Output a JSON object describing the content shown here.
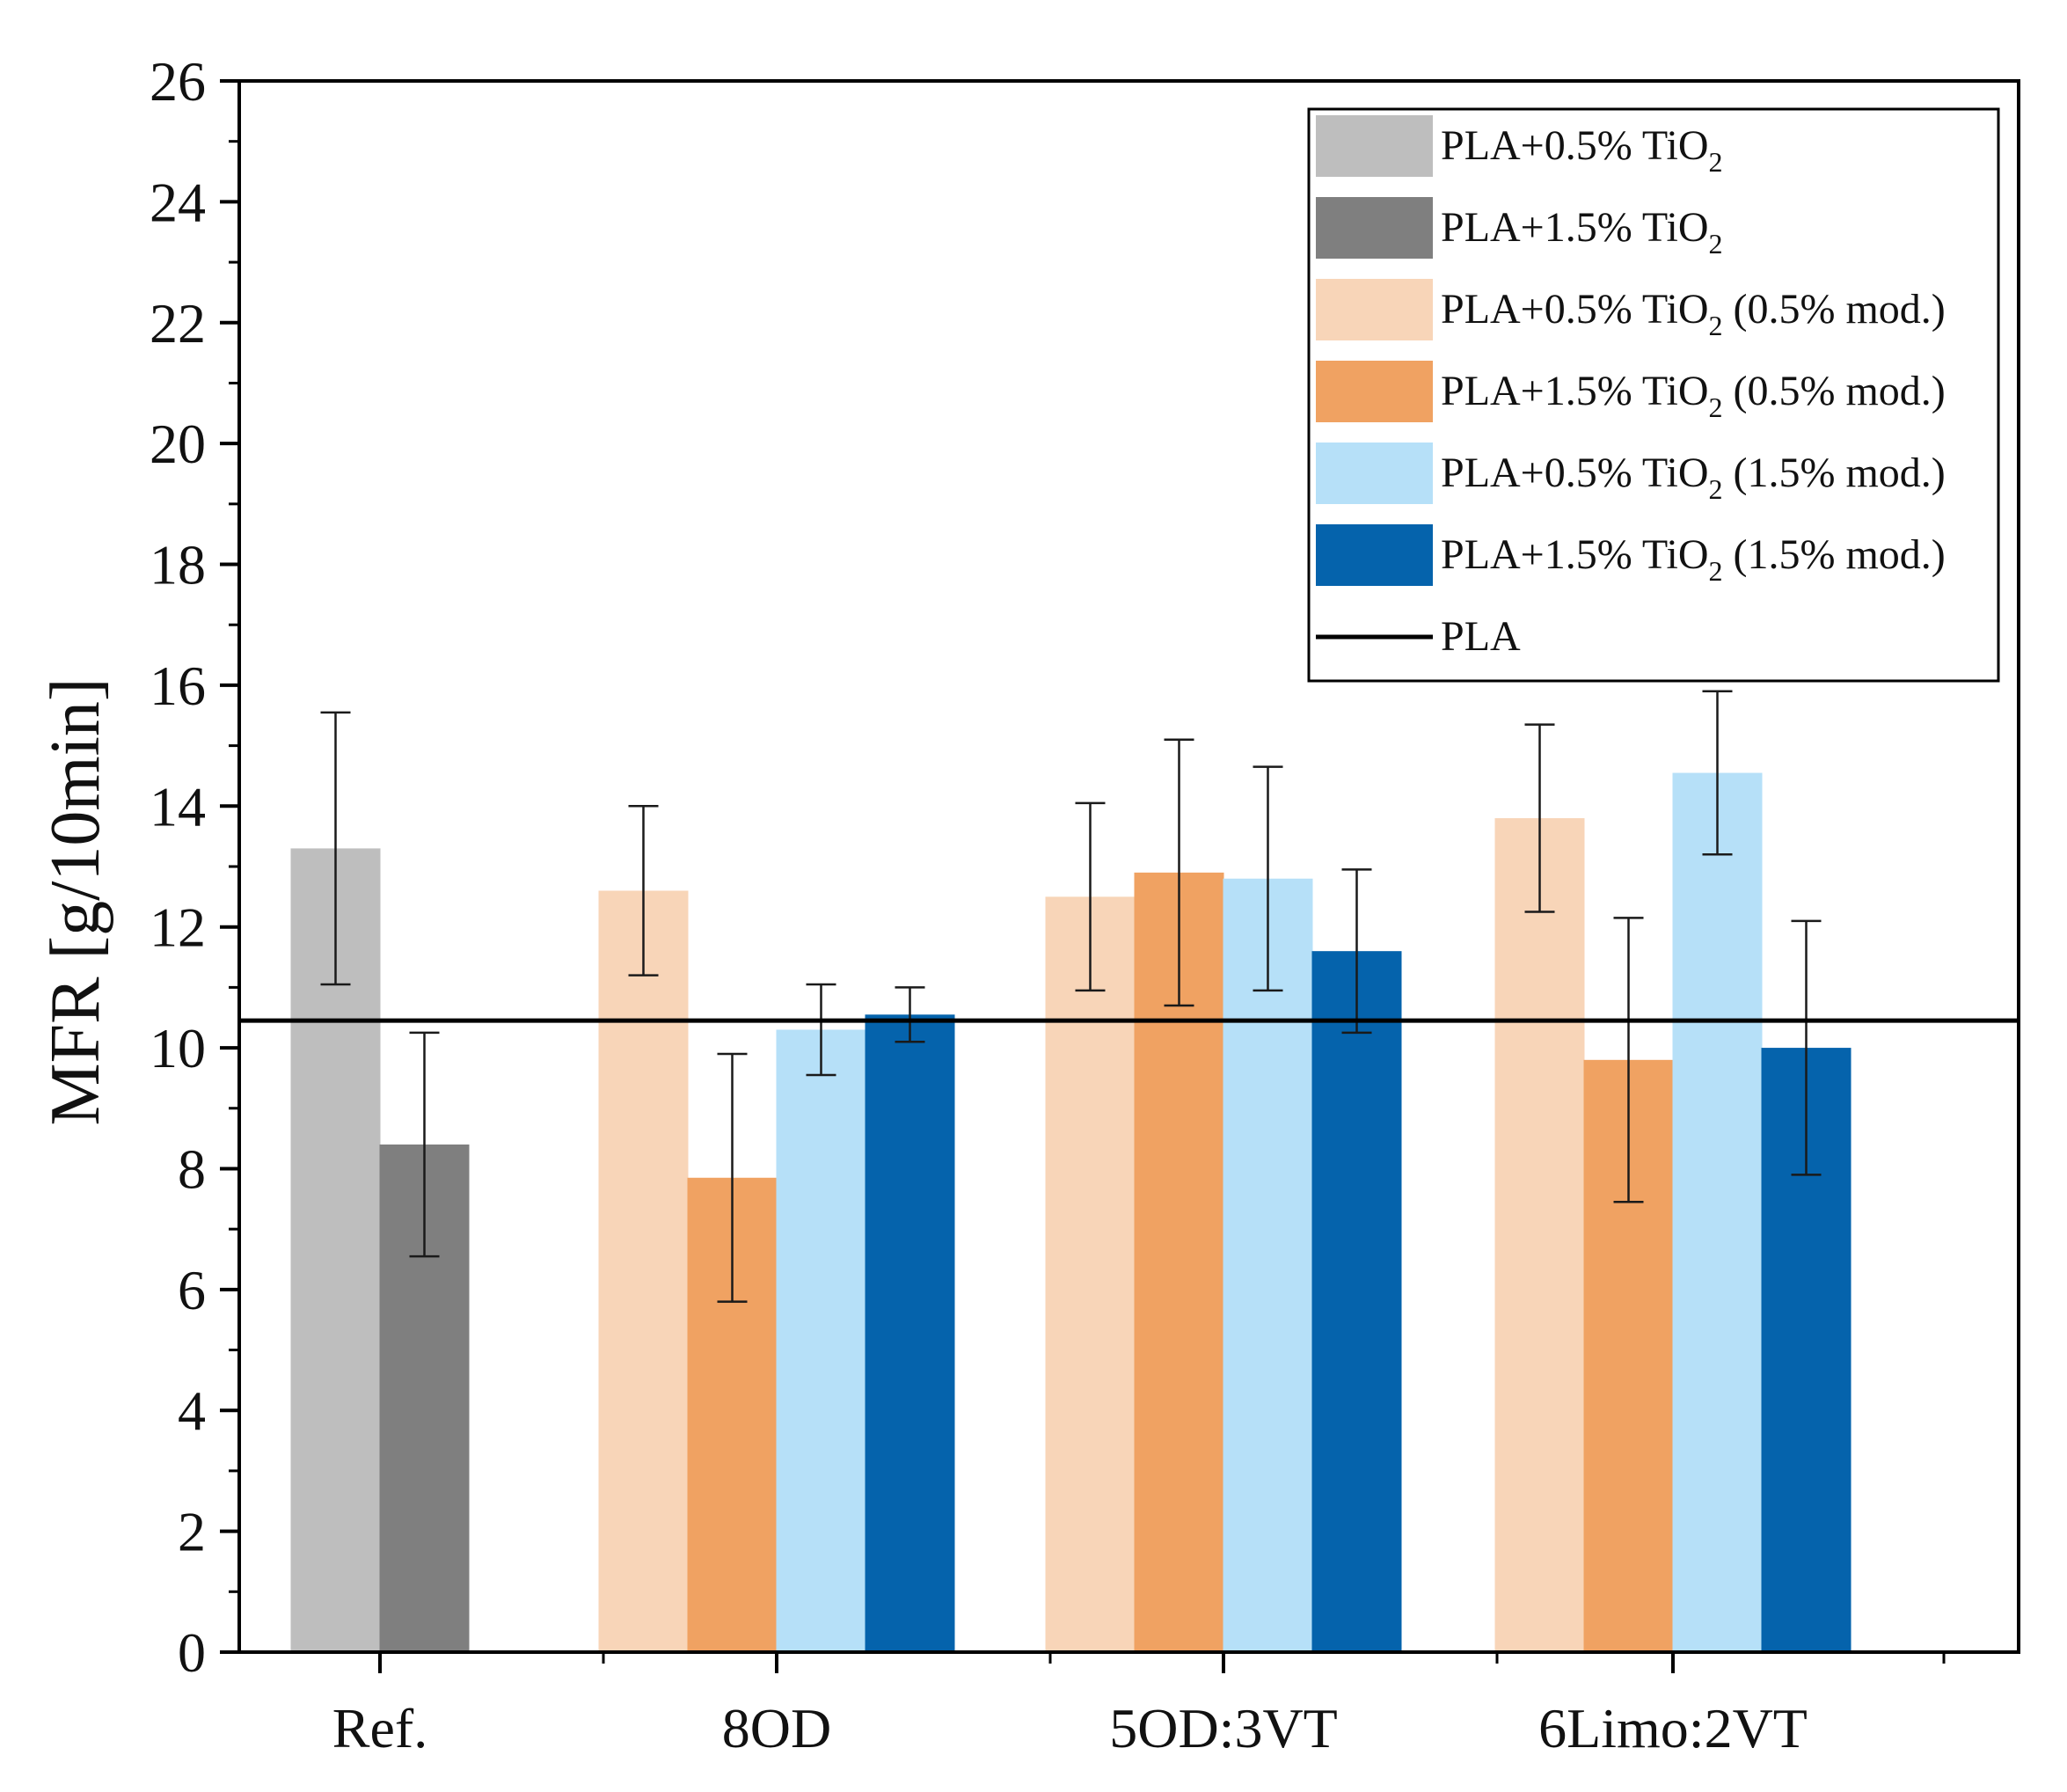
{
  "chart_data": {
    "type": "bar",
    "title": "",
    "xlabel": "",
    "ylabel": "MFR [g/10min]",
    "ylim": [
      0,
      26
    ],
    "yticks": [
      "0",
      "2",
      "4",
      "6",
      "8",
      "10",
      "12",
      "14",
      "16",
      "18",
      "20",
      "22",
      "24",
      "26"
    ],
    "categories": [
      "Ref.",
      "8OD",
      "5OD:3VT",
      "6Limo:2VT"
    ],
    "series": [
      {
        "name": "PLA+0.5% TiO2",
        "color": "#bebebe",
        "values": [
          13.3,
          null,
          null,
          null
        ],
        "errors": [
          2.25,
          null,
          null,
          null
        ]
      },
      {
        "name": "PLA+1.5% TiO2",
        "color": "#7f7f7f",
        "values": [
          8.4,
          null,
          null,
          null
        ],
        "errors": [
          1.85,
          null,
          null,
          null
        ]
      },
      {
        "name": "PLA+0.5% TiO2 (0.5% mod.)",
        "color": "#f8d5b8",
        "values": [
          null,
          12.6,
          12.5,
          13.8
        ],
        "errors": [
          null,
          1.4,
          1.55,
          1.55
        ]
      },
      {
        "name": "PLA+1.5% TiO2 (0.5% mod.)",
        "color": "#f0a262",
        "values": [
          null,
          7.85,
          12.9,
          9.8
        ],
        "errors": [
          null,
          2.05,
          2.2,
          2.35
        ]
      },
      {
        "name": "PLA+0.5% TiO2 (1.5% mod.)",
        "color": "#b6e0f8",
        "values": [
          null,
          10.3,
          12.8,
          14.55
        ],
        "errors": [
          null,
          0.75,
          1.85,
          1.35
        ]
      },
      {
        "name": "PLA+1.5% TiO2 (1.5% mod.)",
        "color": "#0563ac",
        "values": [
          null,
          10.55,
          11.6,
          10.0
        ],
        "errors": [
          null,
          0.45,
          1.35,
          2.1
        ]
      }
    ],
    "reference_line": {
      "name": "PLA",
      "value": 10.45,
      "color": "#000000"
    },
    "legend": {
      "placement": "top-right",
      "entries": [
        {
          "prefix": "PLA+0.5% TiO",
          "sub": "2",
          "suffix": ""
        },
        {
          "prefix": "PLA+1.5% TiO",
          "sub": "2",
          "suffix": ""
        },
        {
          "prefix": "PLA+0.5% TiO",
          "sub": "2",
          "suffix": " (0.5% mod.)"
        },
        {
          "prefix": "PLA+1.5% TiO",
          "sub": "2",
          "suffix": " (0.5% mod.)"
        },
        {
          "prefix": "PLA+0.5% TiO",
          "sub": "2",
          "suffix": " (1.5% mod.)"
        },
        {
          "prefix": "PLA+1.5% TiO",
          "sub": "2",
          "suffix": " (1.5% mod.)"
        },
        {
          "prefix": "PLA",
          "sub": "",
          "suffix": ""
        }
      ]
    }
  }
}
